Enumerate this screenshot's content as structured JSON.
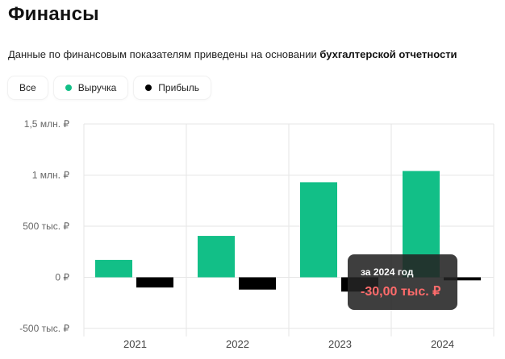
{
  "page": {
    "title": "Финансы",
    "subtitle_prefix": "Данные по финансовым показателям приведены на основании",
    "subtitle_link": "бухгалтерской отчетности"
  },
  "filters": [
    {
      "label": "Все"
    },
    {
      "label": "Выручка",
      "color": "#12bf87"
    },
    {
      "label": "Прибыль",
      "color": "#000000"
    }
  ],
  "tooltip": {
    "label": "за 2024 год",
    "value": "-30,00 тыс. ₽"
  },
  "colors": {
    "revenue": "#12bf87",
    "profit": "#000000",
    "grid": "#e6e6e6"
  },
  "chart_data": {
    "type": "bar",
    "categories": [
      "2021",
      "2022",
      "2023",
      "2024"
    ],
    "series": [
      {
        "name": "Выручка",
        "values": [
          170000,
          405000,
          930000,
          1040000
        ]
      },
      {
        "name": "Прибыль",
        "values": [
          -100000,
          -120000,
          -140000,
          -30000
        ]
      }
    ],
    "ylim": [
      -500000,
      1500000
    ],
    "yticks": [
      {
        "value": 1500000,
        "label": "1,5 млн. ₽"
      },
      {
        "value": 1000000,
        "label": "1 млн. ₽"
      },
      {
        "value": 500000,
        "label": "500 тыс. ₽"
      },
      {
        "value": 0,
        "label": "0 ₽"
      },
      {
        "value": -500000,
        "label": "-500 тыс. ₽"
      }
    ],
    "grid": true
  }
}
